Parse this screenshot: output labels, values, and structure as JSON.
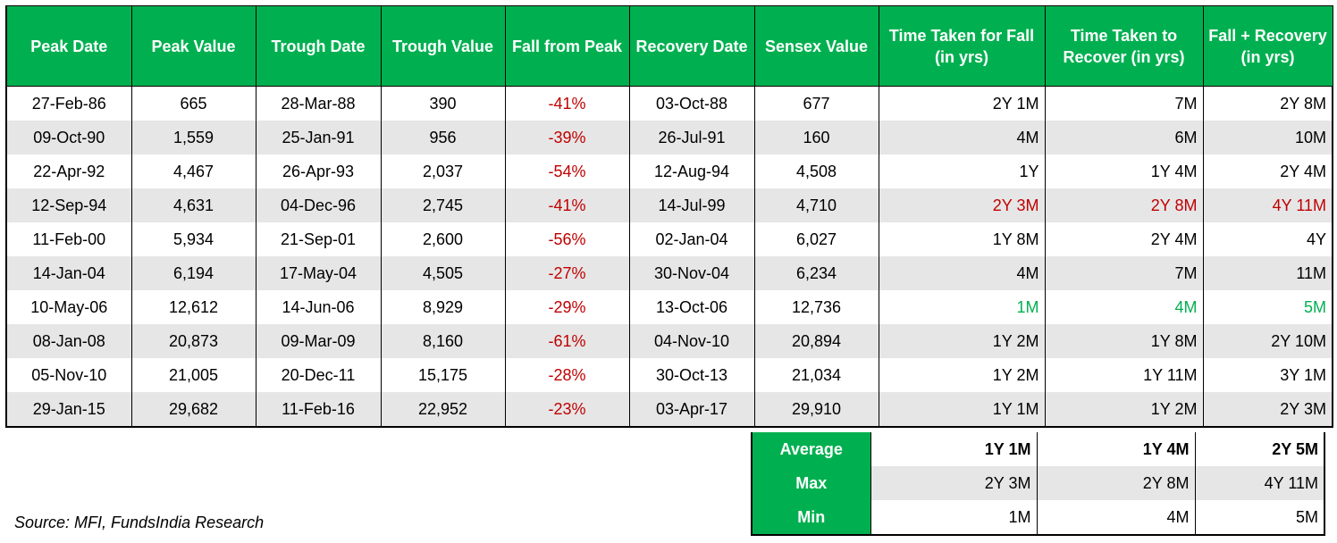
{
  "headers": [
    "Peak Date",
    "Peak Value",
    "Trough Date",
    "Trough Value",
    "Fall from Peak",
    "Recovery Date",
    "Sensex Value",
    "Time Taken for Fall (in yrs)",
    "Time Taken to Recover (in yrs)",
    "Fall + Recovery (in yrs)"
  ],
  "rows": [
    [
      "27-Feb-86",
      "665",
      "28-Mar-88",
      "390",
      "-41%",
      "03-Oct-88",
      "677",
      "2Y 1M",
      "7M",
      "2Y 8M"
    ],
    [
      "09-Oct-90",
      "1,559",
      "25-Jan-91",
      "956",
      "-39%",
      "26-Jul-91",
      "160",
      "4M",
      "6M",
      "10M"
    ],
    [
      "22-Apr-92",
      "4,467",
      "26-Apr-93",
      "2,037",
      "-54%",
      "12-Aug-94",
      "4,508",
      "1Y",
      "1Y 4M",
      "2Y 4M"
    ],
    [
      "12-Sep-94",
      "4,631",
      "04-Dec-96",
      "2,745",
      "-41%",
      "14-Jul-99",
      "4,710",
      "2Y 3M",
      "2Y 8M",
      "4Y 11M"
    ],
    [
      "11-Feb-00",
      "5,934",
      "21-Sep-01",
      "2,600",
      "-56%",
      "02-Jan-04",
      "6,027",
      "1Y 8M",
      "2Y 4M",
      "4Y"
    ],
    [
      "14-Jan-04",
      "6,194",
      "17-May-04",
      "4,505",
      "-27%",
      "30-Nov-04",
      "6,234",
      "4M",
      "7M",
      "11M"
    ],
    [
      "10-May-06",
      "12,612",
      "14-Jun-06",
      "8,929",
      "-29%",
      "13-Oct-06",
      "12,736",
      "1M",
      "4M",
      "5M"
    ],
    [
      "08-Jan-08",
      "20,873",
      "09-Mar-09",
      "8,160",
      "-61%",
      "04-Nov-10",
      "20,894",
      "1Y 2M",
      "1Y 8M",
      "2Y 10M"
    ],
    [
      "05-Nov-10",
      "21,005",
      "20-Dec-11",
      "15,175",
      "-28%",
      "30-Oct-13",
      "21,034",
      "1Y 2M",
      "1Y 11M",
      "3Y 1M"
    ],
    [
      "29-Jan-15",
      "29,682",
      "11-Feb-16",
      "22,952",
      "-23%",
      "03-Apr-17",
      "29,910",
      "1Y 1M",
      "1Y 2M",
      "2Y 3M"
    ]
  ],
  "summary": [
    {
      "label": "Average",
      "fall": "1Y 1M",
      "recover": "1Y 4M",
      "total": "2Y 5M"
    },
    {
      "label": "Max",
      "fall": "2Y 3M",
      "recover": "2Y 8M",
      "total": "4Y 11M"
    },
    {
      "label": "Min",
      "fall": "1M",
      "recover": "4M",
      "total": "5M"
    }
  ],
  "colors": {
    "header_bg": "#00b050",
    "negative": "#c00000",
    "max_highlight": "#c00000",
    "min_highlight": "#00b050",
    "alt_row": "#e6e6e6"
  },
  "source": "Source: MFI, FundsIndia Research"
}
